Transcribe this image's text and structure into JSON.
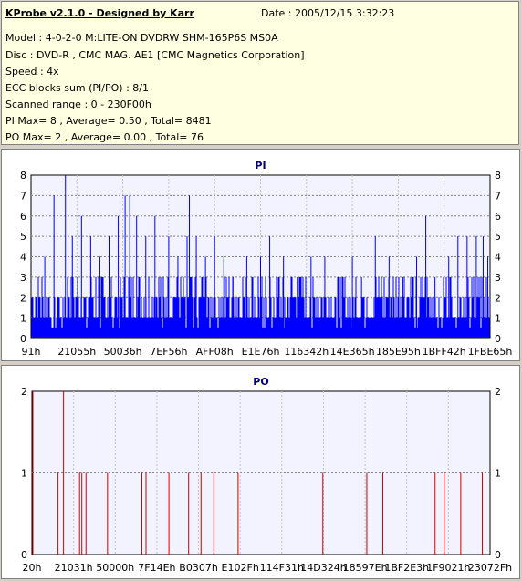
{
  "header": {
    "title": "KProbe v2.1.0 - Designed by Karr",
    "date": "Date : 2005/12/15 3:32:23"
  },
  "info_lines": [
    "Model : 4-0-2-0 M:LITE-ON DVDRW SHM-165P6S MS0A",
    "Disc : DVD-R , CMC MAG. AE1 [CMC Magnetics Corporation]",
    "Speed : 4x",
    "ECC blocks sum (PI/PO) : 8/1",
    "Scanned range : 0 - 230F00h",
    "PI Max= 8 , Average= 0.50 , Total= 8481",
    "PO Max= 2 , Average= 0.00 , Total= 76"
  ],
  "chart_data": [
    {
      "type": "bar",
      "title": "PI",
      "color": "#0000ff",
      "ylim": [
        0,
        8
      ],
      "yticks": [
        0,
        1,
        2,
        3,
        4,
        5,
        6,
        7,
        8
      ],
      "xticks": [
        "91h",
        "21055h",
        "50036h",
        "7EF56h",
        "AFF08h",
        "E1E76h",
        "116342h",
        "14E365h",
        "185E95h",
        "1BFF42h",
        "1FBE65h"
      ],
      "peaks": [
        {
          "pos": 0.03,
          "value": 4
        },
        {
          "pos": 0.05,
          "value": 7
        },
        {
          "pos": 0.075,
          "value": 8
        },
        {
          "pos": 0.09,
          "value": 5
        },
        {
          "pos": 0.11,
          "value": 6
        },
        {
          "pos": 0.13,
          "value": 5
        },
        {
          "pos": 0.15,
          "value": 4
        },
        {
          "pos": 0.17,
          "value": 5
        },
        {
          "pos": 0.19,
          "value": 6
        },
        {
          "pos": 0.205,
          "value": 7
        },
        {
          "pos": 0.215,
          "value": 7
        },
        {
          "pos": 0.23,
          "value": 6
        },
        {
          "pos": 0.25,
          "value": 5
        },
        {
          "pos": 0.27,
          "value": 6
        },
        {
          "pos": 0.3,
          "value": 5
        },
        {
          "pos": 0.32,
          "value": 4
        },
        {
          "pos": 0.34,
          "value": 5
        },
        {
          "pos": 0.345,
          "value": 7
        },
        {
          "pos": 0.36,
          "value": 5
        },
        {
          "pos": 0.38,
          "value": 4
        },
        {
          "pos": 0.4,
          "value": 5
        },
        {
          "pos": 0.42,
          "value": 4
        },
        {
          "pos": 0.44,
          "value": 3
        },
        {
          "pos": 0.47,
          "value": 4
        },
        {
          "pos": 0.5,
          "value": 4
        },
        {
          "pos": 0.52,
          "value": 5
        },
        {
          "pos": 0.55,
          "value": 4
        },
        {
          "pos": 0.58,
          "value": 3
        },
        {
          "pos": 0.61,
          "value": 4
        },
        {
          "pos": 0.64,
          "value": 4
        },
        {
          "pos": 0.67,
          "value": 3
        },
        {
          "pos": 0.7,
          "value": 4
        },
        {
          "pos": 0.72,
          "value": 3
        },
        {
          "pos": 0.75,
          "value": 5
        },
        {
          "pos": 0.78,
          "value": 4
        },
        {
          "pos": 0.81,
          "value": 3
        },
        {
          "pos": 0.84,
          "value": 4
        },
        {
          "pos": 0.86,
          "value": 6
        },
        {
          "pos": 0.88,
          "value": 3
        },
        {
          "pos": 0.91,
          "value": 4
        },
        {
          "pos": 0.93,
          "value": 5
        },
        {
          "pos": 0.95,
          "value": 5
        },
        {
          "pos": 0.97,
          "value": 5
        },
        {
          "pos": 0.985,
          "value": 5
        },
        {
          "pos": 0.995,
          "value": 4
        }
      ]
    },
    {
      "type": "bar",
      "title": "PO",
      "color": "#cc0000",
      "ylim": [
        0,
        2
      ],
      "yticks": [
        0,
        1,
        2
      ],
      "xticks": [
        "20h",
        "21031h",
        "50000h",
        "7F14Eh",
        "B0307h",
        "E102Fh",
        "114F31h",
        "14D324h",
        "18597Eh",
        "1BF2E3h",
        "1F9021h",
        "23072Fh"
      ],
      "values": [
        {
          "pos": 0.002,
          "value": 2
        },
        {
          "pos": 0.057,
          "value": 1
        },
        {
          "pos": 0.069,
          "value": 2
        },
        {
          "pos": 0.104,
          "value": 1
        },
        {
          "pos": 0.109,
          "value": 1
        },
        {
          "pos": 0.118,
          "value": 1
        },
        {
          "pos": 0.165,
          "value": 1
        },
        {
          "pos": 0.24,
          "value": 1
        },
        {
          "pos": 0.249,
          "value": 1
        },
        {
          "pos": 0.299,
          "value": 1
        },
        {
          "pos": 0.342,
          "value": 1
        },
        {
          "pos": 0.369,
          "value": 1
        },
        {
          "pos": 0.397,
          "value": 1
        },
        {
          "pos": 0.45,
          "value": 1
        },
        {
          "pos": 0.635,
          "value": 1
        },
        {
          "pos": 0.731,
          "value": 1
        },
        {
          "pos": 0.766,
          "value": 1
        },
        {
          "pos": 0.88,
          "value": 1
        },
        {
          "pos": 0.9,
          "value": 1
        },
        {
          "pos": 0.936,
          "value": 1
        },
        {
          "pos": 0.983,
          "value": 1
        }
      ]
    }
  ]
}
